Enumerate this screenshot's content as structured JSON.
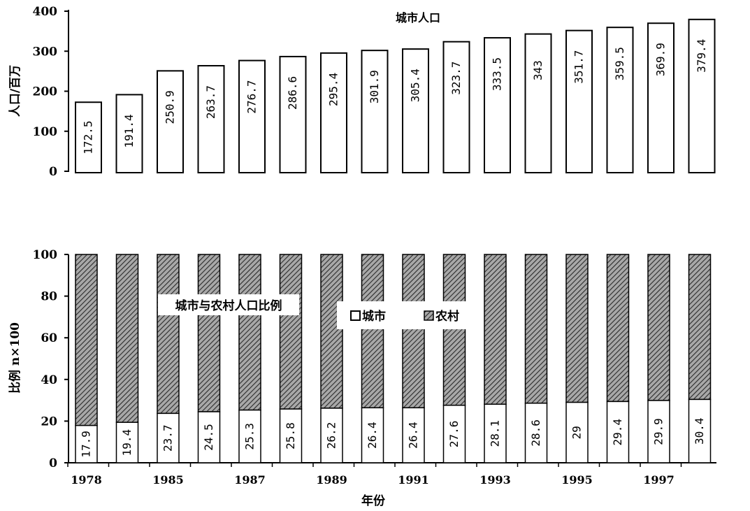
{
  "chart_data": [
    {
      "type": "bar",
      "title": "城市人口",
      "ylabel": "人口/百万",
      "xlabel": "",
      "ylim": [
        0,
        400
      ],
      "yticks": [
        0,
        100,
        200,
        300,
        400
      ],
      "grid": false,
      "values": [
        172.5,
        191.4,
        250.9,
        263.7,
        276.7,
        286.6,
        295.4,
        301.9,
        305.4,
        323.7,
        333.5,
        343,
        351.7,
        359.5,
        369.9,
        379.4
      ],
      "value_labels": [
        "172.5",
        "191.4",
        "250.9",
        "263.7",
        "276.7",
        "286.6",
        "295.4",
        "301.9",
        "305.4",
        "323.7",
        "333.5",
        "343",
        "351.7",
        "359.5",
        "369.9",
        "379.4"
      ],
      "bar_color": "#ffffff"
    },
    {
      "type": "bar",
      "stacked": true,
      "title": "城市与农村人口比例",
      "ylabel": "比例 n×100",
      "xlabel": "年份",
      "ylim": [
        0,
        100
      ],
      "yticks": [
        0,
        20,
        40,
        60,
        80,
        100
      ],
      "xtick_labels": [
        "1978",
        "1985",
        "1987",
        "1989",
        "1991",
        "1993",
        "1995",
        "1997"
      ],
      "legend_position": "top-center",
      "grid": false,
      "series": [
        {
          "name": "城市",
          "fill": "#ffffff",
          "values": [
            17.9,
            19.4,
            23.7,
            24.5,
            25.3,
            25.8,
            26.2,
            26.4,
            26.4,
            27.6,
            28.1,
            28.6,
            29,
            29.4,
            29.9,
            30.4
          ],
          "value_labels": [
            "17.9",
            "19.4",
            "23.7",
            "24.5",
            "25.3",
            "25.8",
            "26.2",
            "26.4",
            "26.4",
            "27.6",
            "28.1",
            "28.6",
            "29",
            "29.4",
            "29.9",
            "30.4"
          ]
        },
        {
          "name": "农村",
          "fill": "hatch",
          "values": [
            82.1,
            80.6,
            76.3,
            75.5,
            74.7,
            74.2,
            73.8,
            73.6,
            73.6,
            72.4,
            71.9,
            71.4,
            71,
            70.6,
            70.1,
            69.6
          ]
        }
      ]
    }
  ]
}
